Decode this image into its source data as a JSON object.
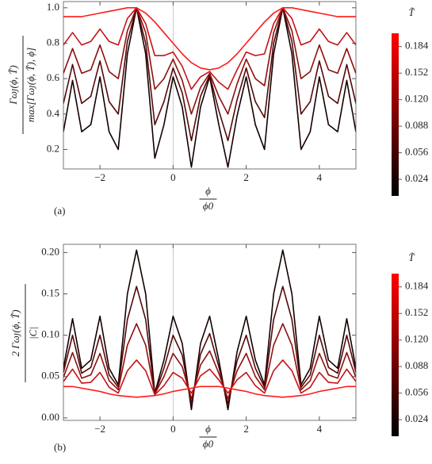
{
  "chart_data": [
    {
      "type": "line",
      "panel_label": "(a)",
      "ylabel": {
        "numerator": "Γωȷ(ϕ, T̃)",
        "denominator": "max[Γωȷ(ϕ, T̃), ϕ]"
      },
      "xlabel": {
        "numerator": "ϕ",
        "denominator": "ϕ0"
      },
      "xlim": [
        -3,
        5
      ],
      "xticks": [
        {
          "value": -2,
          "label": "−2"
        },
        0,
        2,
        4
      ],
      "ylim": [
        0.09,
        1.035
      ],
      "yticks": [
        0.2,
        0.4,
        0.6,
        0.8,
        {
          "value": 1,
          "label": "1.0"
        }
      ],
      "zero_line": true,
      "x": [
        -3,
        -2.75,
        -2.5,
        -2.25,
        -2,
        -1.75,
        -1.5,
        -1.25,
        -1,
        -0.75,
        -0.5,
        -0.25,
        0,
        0.25,
        0.5,
        0.75,
        1,
        1.25,
        1.5,
        1.75,
        2,
        2.25,
        2.5,
        2.75,
        3,
        3.25,
        3.5,
        3.75,
        4,
        4.25,
        4.5,
        4.75,
        5
      ],
      "series": [
        {
          "color": "#140000",
          "values": [
            0.3,
            0.59,
            0.3,
            0.34,
            0.61,
            0.3,
            0.2,
            0.74,
            1.0,
            0.74,
            0.15,
            0.34,
            0.61,
            0.44,
            0.1,
            0.44,
            0.61,
            0.34,
            0.1,
            0.39,
            0.61,
            0.34,
            0.2,
            0.74,
            1.0,
            0.74,
            0.2,
            0.3,
            0.61,
            0.34,
            0.3,
            0.59,
            0.3
          ]
        },
        {
          "color": "#550808",
          "values": [
            0.46,
            0.68,
            0.46,
            0.5,
            0.7,
            0.47,
            0.4,
            0.81,
            1.0,
            0.8,
            0.34,
            0.47,
            0.66,
            0.52,
            0.25,
            0.5,
            0.62,
            0.42,
            0.25,
            0.48,
            0.66,
            0.47,
            0.38,
            0.8,
            1.0,
            0.81,
            0.4,
            0.47,
            0.7,
            0.5,
            0.46,
            0.68,
            0.46
          ]
        },
        {
          "color": "#8c1010",
          "values": [
            0.63,
            0.77,
            0.63,
            0.65,
            0.79,
            0.64,
            0.6,
            0.87,
            1.0,
            0.86,
            0.54,
            0.6,
            0.71,
            0.59,
            0.4,
            0.55,
            0.63,
            0.5,
            0.4,
            0.57,
            0.71,
            0.6,
            0.56,
            0.86,
            1.0,
            0.87,
            0.6,
            0.64,
            0.79,
            0.65,
            0.63,
            0.77,
            0.63
          ]
        },
        {
          "color": "#c41414",
          "values": [
            0.79,
            0.86,
            0.79,
            0.81,
            0.88,
            0.81,
            0.79,
            0.94,
            1.0,
            0.91,
            0.73,
            0.73,
            0.75,
            0.67,
            0.54,
            0.61,
            0.64,
            0.58,
            0.54,
            0.65,
            0.75,
            0.73,
            0.74,
            0.91,
            1.0,
            0.94,
            0.79,
            0.81,
            0.88,
            0.81,
            0.79,
            0.86,
            0.79
          ]
        },
        {
          "color": "#ff1a1a",
          "values": [
            0.95,
            0.95,
            0.95,
            0.96,
            0.97,
            0.98,
            0.99,
            1.0,
            1.0,
            0.97,
            0.92,
            0.86,
            0.8,
            0.74,
            0.69,
            0.66,
            0.65,
            0.66,
            0.69,
            0.74,
            0.8,
            0.86,
            0.92,
            0.97,
            1.0,
            1.0,
            0.99,
            0.98,
            0.97,
            0.96,
            0.95,
            0.95,
            0.95
          ]
        }
      ],
      "colorbar": {
        "label": "T̃",
        "lim": [
          0.004,
          0.2
        ],
        "colors": [
          "#000000",
          "#ff0000"
        ],
        "ticks": [
          0.024,
          0.056,
          0.088,
          {
            "value": 0.12,
            "label": "0.120"
          },
          0.152,
          0.184
        ]
      }
    },
    {
      "type": "line",
      "panel_label": "(b)",
      "ylabel": {
        "numerator": "2 Γωȷ(ϕ, T̃)",
        "denominator": "|C|"
      },
      "xlabel": {
        "numerator": "ϕ",
        "denominator": "ϕ0"
      },
      "xlim": [
        -3,
        5
      ],
      "xticks": [
        {
          "value": -2,
          "label": "−2"
        },
        0,
        2,
        4
      ],
      "ylim": [
        -0.003,
        0.21
      ],
      "yticks": [
        {
          "value": 0,
          "label": "0.00"
        },
        {
          "value": 0.05,
          "label": "0.05"
        },
        {
          "value": 0.1,
          "label": "0.10"
        },
        {
          "value": 0.15,
          "label": "0.15"
        },
        {
          "value": 0.2,
          "label": "0.20"
        }
      ],
      "zero_line": true,
      "x": [
        -3,
        -2.75,
        -2.5,
        -2.25,
        -2,
        -1.75,
        -1.5,
        -1.25,
        -1,
        -0.75,
        -0.5,
        -0.25,
        0,
        0.25,
        0.5,
        0.75,
        1,
        1.25,
        1.5,
        1.75,
        2,
        2.25,
        2.5,
        2.75,
        3,
        3.25,
        3.5,
        3.75,
        4,
        4.25,
        4.5,
        4.75,
        5
      ],
      "series": [
        {
          "color": "#140000",
          "values": [
            0.06,
            0.12,
            0.06,
            0.07,
            0.123,
            0.06,
            0.04,
            0.15,
            0.203,
            0.15,
            0.03,
            0.07,
            0.123,
            0.09,
            0.01,
            0.09,
            0.123,
            0.07,
            0.01,
            0.08,
            0.123,
            0.07,
            0.04,
            0.15,
            0.203,
            0.15,
            0.04,
            0.06,
            0.123,
            0.07,
            0.06,
            0.12,
            0.06
          ]
        },
        {
          "color": "#550808",
          "values": [
            0.055,
            0.1,
            0.054,
            0.061,
            0.1,
            0.052,
            0.037,
            0.119,
            0.159,
            0.119,
            0.029,
            0.06,
            0.1,
            0.076,
            0.017,
            0.077,
            0.102,
            0.062,
            0.017,
            0.069,
            0.1,
            0.06,
            0.037,
            0.119,
            0.159,
            0.119,
            0.037,
            0.052,
            0.1,
            0.061,
            0.054,
            0.1,
            0.055
          ]
        },
        {
          "color": "#8c1010",
          "values": [
            0.049,
            0.079,
            0.048,
            0.052,
            0.078,
            0.045,
            0.034,
            0.088,
            0.114,
            0.088,
            0.029,
            0.05,
            0.078,
            0.062,
            0.023,
            0.064,
            0.081,
            0.054,
            0.023,
            0.057,
            0.078,
            0.05,
            0.034,
            0.088,
            0.114,
            0.088,
            0.034,
            0.045,
            0.078,
            0.052,
            0.048,
            0.079,
            0.049
          ]
        },
        {
          "color": "#c41414",
          "values": [
            0.044,
            0.059,
            0.042,
            0.043,
            0.055,
            0.037,
            0.03,
            0.057,
            0.07,
            0.057,
            0.028,
            0.039,
            0.055,
            0.048,
            0.03,
            0.051,
            0.059,
            0.046,
            0.03,
            0.046,
            0.055,
            0.039,
            0.03,
            0.057,
            0.07,
            0.057,
            0.03,
            0.037,
            0.055,
            0.043,
            0.042,
            0.059,
            0.044
          ]
        },
        {
          "color": "#ff1a1a",
          "values": [
            0.038,
            0.038,
            0.036,
            0.034,
            0.032,
            0.029,
            0.027,
            0.026,
            0.025,
            0.026,
            0.027,
            0.029,
            0.032,
            0.034,
            0.036,
            0.038,
            0.038,
            0.038,
            0.036,
            0.034,
            0.032,
            0.029,
            0.027,
            0.026,
            0.025,
            0.026,
            0.027,
            0.029,
            0.032,
            0.034,
            0.036,
            0.038,
            0.038
          ]
        }
      ],
      "colorbar": {
        "label": "T̃",
        "lim": [
          0.004,
          0.2
        ],
        "colors": [
          "#000000",
          "#ff0000"
        ],
        "ticks": [
          0.024,
          0.056,
          0.088,
          {
            "value": 0.12,
            "label": "0.120"
          },
          0.152,
          0.184
        ]
      }
    }
  ]
}
